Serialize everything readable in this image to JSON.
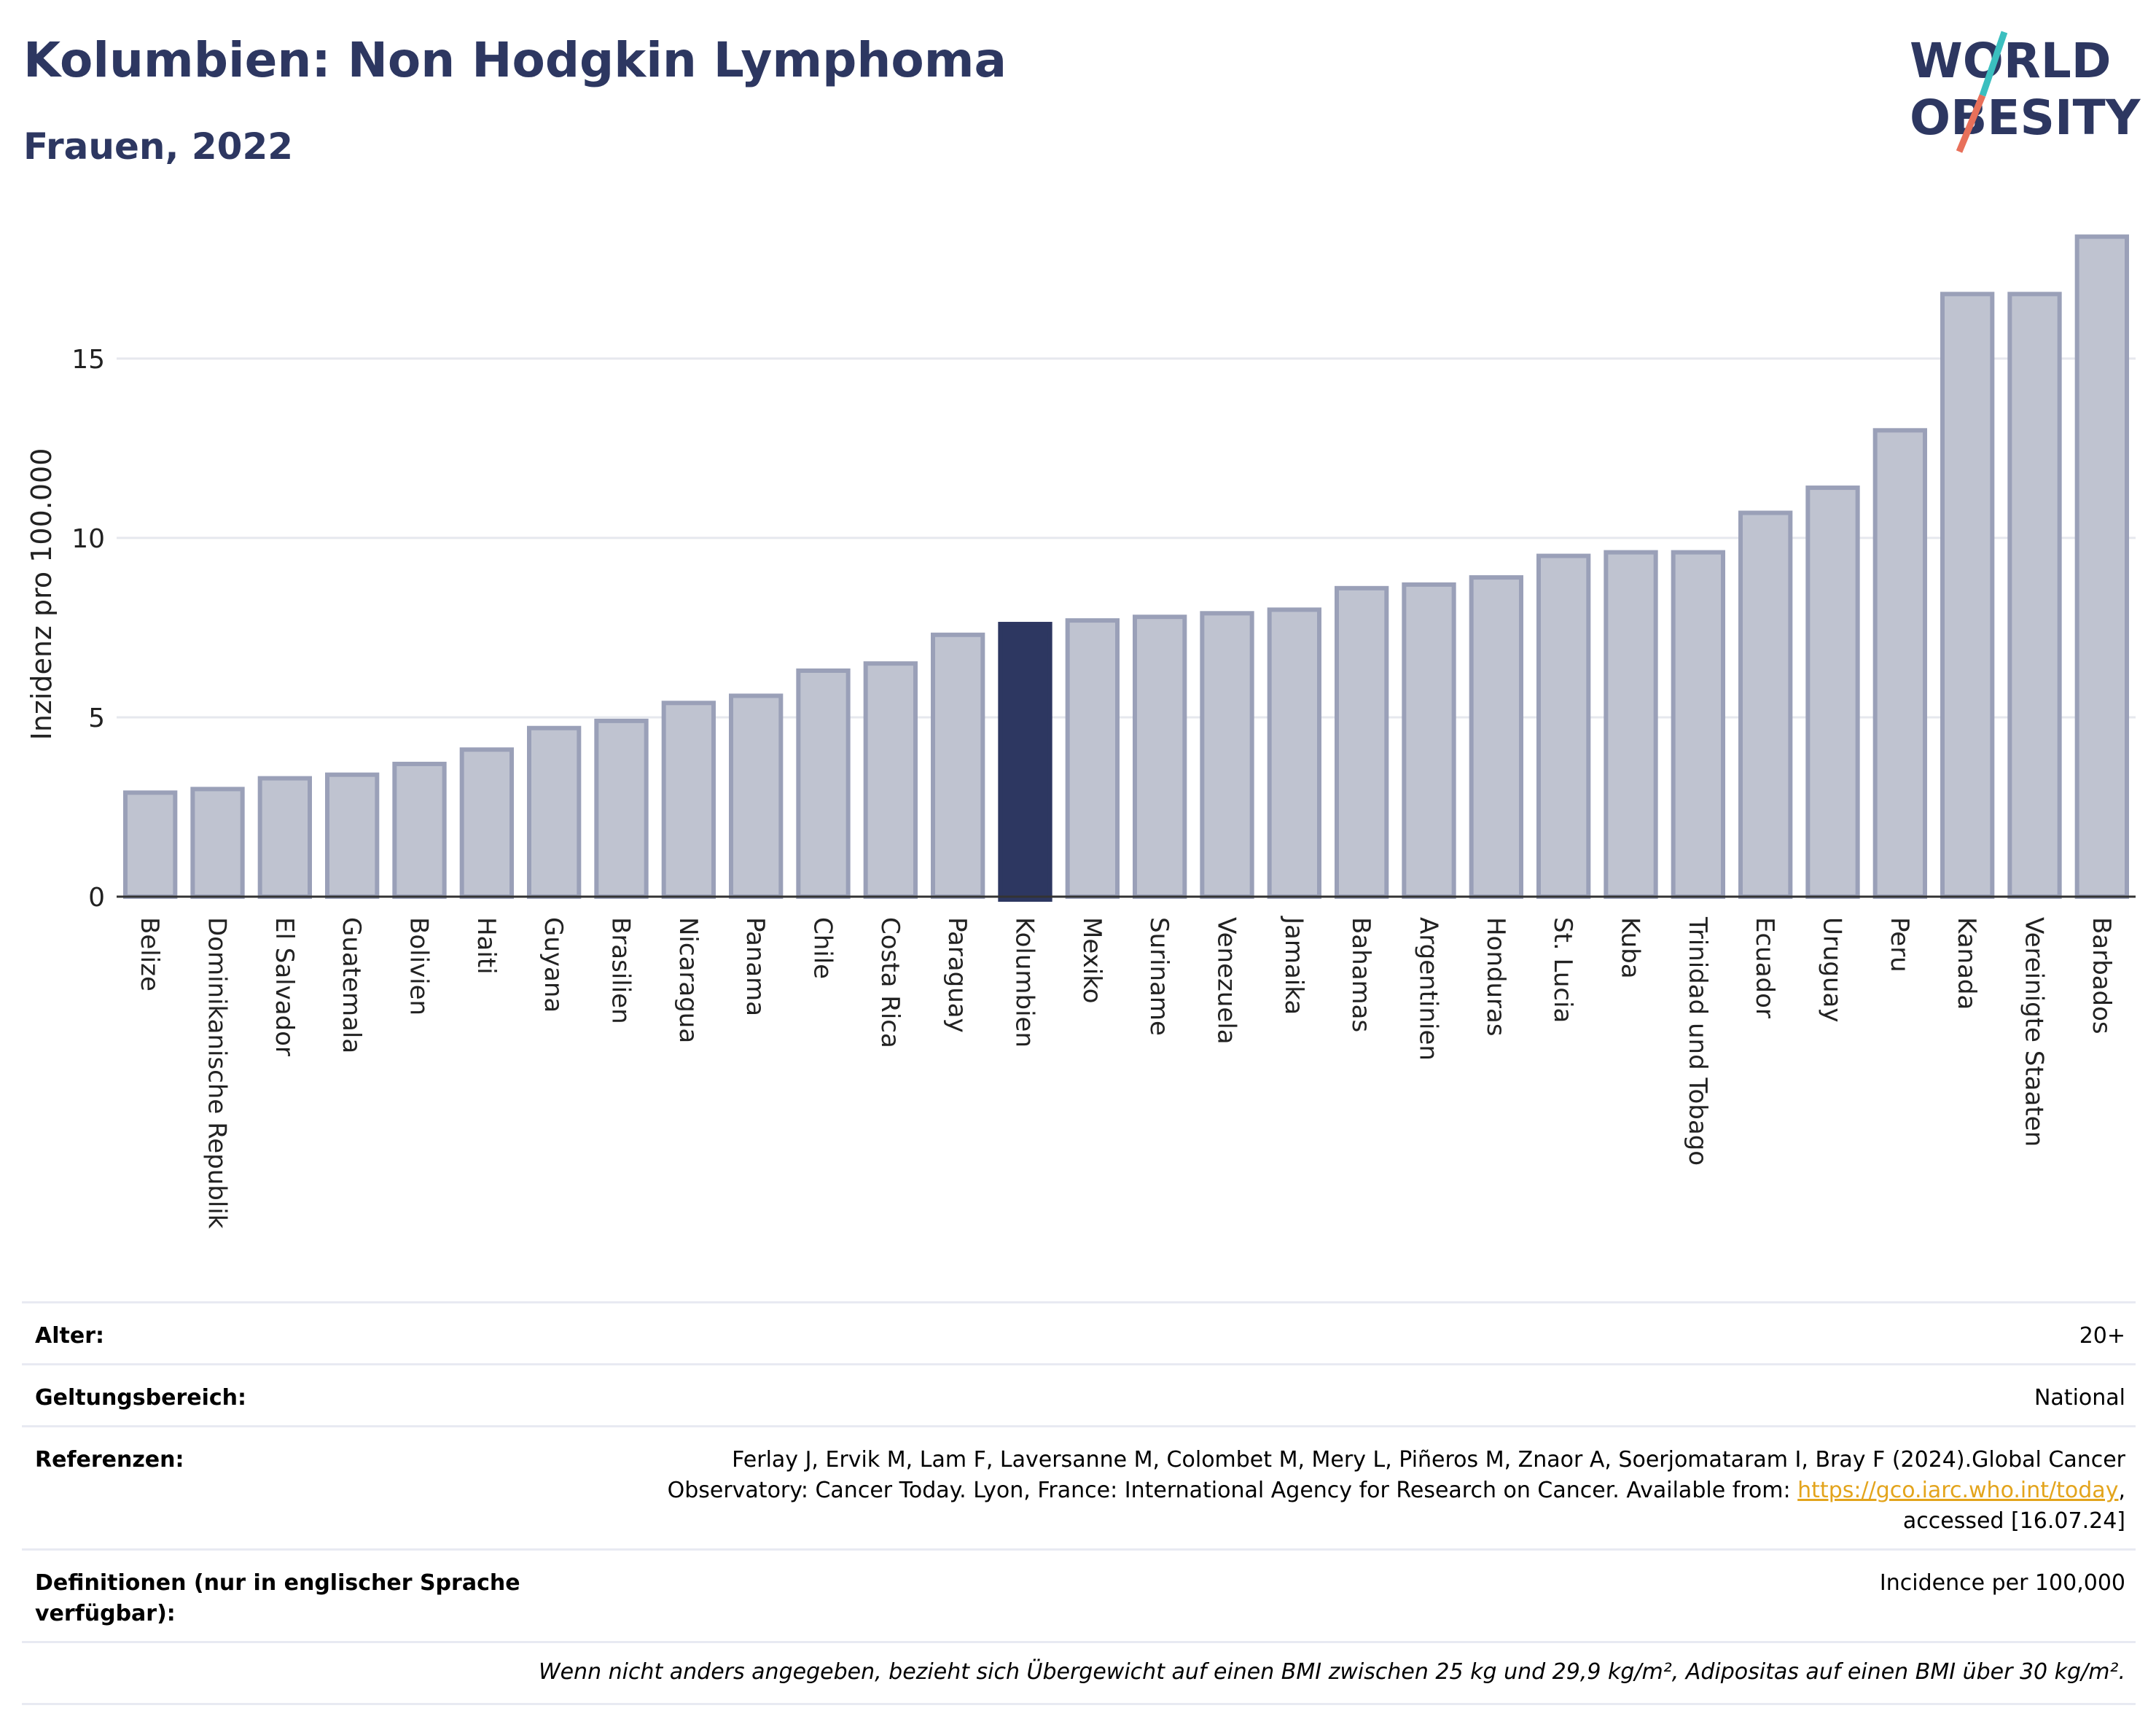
{
  "header": {
    "title": "Kolumbien: Non Hodgkin Lymphoma",
    "subtitle": "Frauen, 2022"
  },
  "logo": {
    "line1": "WORLD",
    "line2": "OBESITY",
    "colors": {
      "text": "#2d3761",
      "slash_top": "#3bbfbf",
      "slash_bottom": "#e8705a"
    }
  },
  "colors": {
    "bar": "#bfc3d0",
    "bar_border": "#9aa0b8",
    "highlight": "#2d3761",
    "grid": "#e6e8ee",
    "axis": "#333333"
  },
  "chart_data": {
    "type": "bar",
    "title": "",
    "xlabel": "",
    "ylabel": "Inzidenz pro 100.000",
    "ylim": [
      0,
      18.9
    ],
    "yticks": [
      0,
      5,
      10,
      15
    ],
    "grid": true,
    "highlight": "Kolumbien",
    "categories": [
      "Belize",
      "Dominikanische Republik",
      "El Salvador",
      "Guatemala",
      "Bolivien",
      "Haiti",
      "Guyana",
      "Brasilien",
      "Nicaragua",
      "Panama",
      "Chile",
      "Costa Rica",
      "Paraguay",
      "Kolumbien",
      "Mexiko",
      "Suriname",
      "Venezuela",
      "Jamaika",
      "Bahamas",
      "Argentinien",
      "Honduras",
      "St. Lucia",
      "Kuba",
      "Trinidad und Tobago",
      "Ecuador",
      "Uruguay",
      "Peru",
      "Kanada",
      "Vereinigte Staaten",
      "Barbados"
    ],
    "values": [
      2.9,
      3.0,
      3.3,
      3.4,
      3.7,
      4.1,
      4.7,
      4.9,
      5.4,
      5.6,
      6.3,
      6.5,
      7.3,
      7.6,
      7.7,
      7.8,
      7.9,
      8.0,
      8.6,
      8.7,
      8.9,
      9.5,
      9.6,
      9.6,
      10.7,
      11.4,
      13.0,
      16.8,
      16.8,
      18.4
    ]
  },
  "meta": {
    "age_label": "Alter:",
    "age_value": "20+",
    "scope_label": "Geltungsbereich:",
    "scope_value": "National",
    "ref_label": "Referenzen:",
    "ref_text_1": "Ferlay J, Ervik M, Lam F, Laversanne M, Colombet M, Mery L, Piñeros M, Znaor A, Soerjomataram I, Bray F (2024).Global Cancer",
    "ref_text_2": "Observatory: Cancer Today. Lyon, France: International Agency for Research on Cancer. Available from: ",
    "ref_link": "https://gco.iarc.who.int/today",
    "ref_text_3": ",",
    "ref_text_4": "accessed [16.07.24]",
    "def_label": "Definitionen (nur in englischer Sprache verfügbar):",
    "def_value": "Incidence per 100,000",
    "note": "Wenn nicht anders angegeben, bezieht sich Übergewicht auf einen BMI zwischen 25 kg und 29,9 kg/m², Adipositas auf einen BMI über 30 kg/m²."
  }
}
